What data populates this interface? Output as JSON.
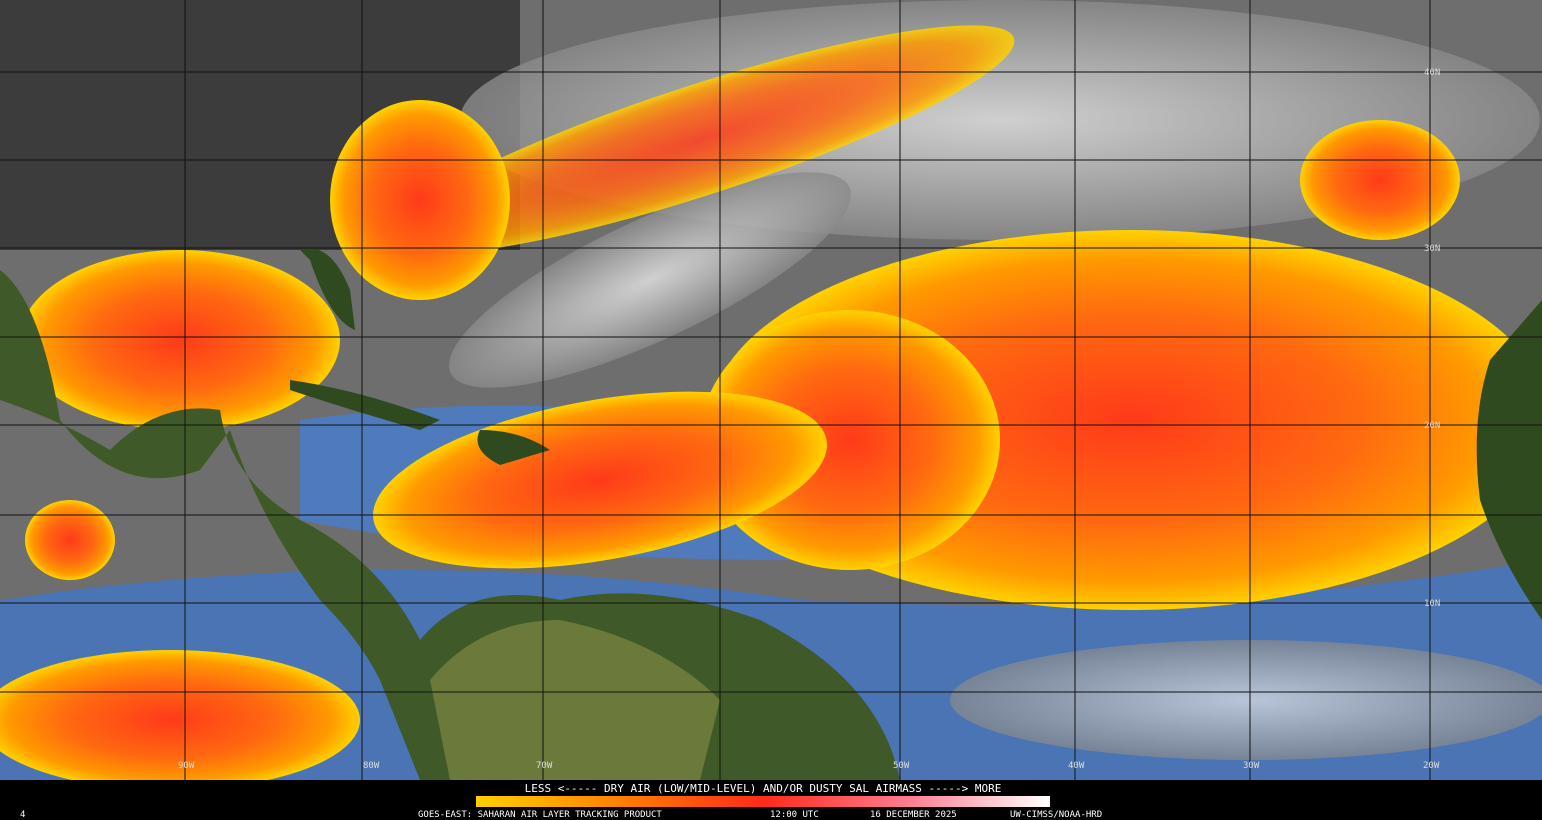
{
  "map": {
    "lat_labels": [
      "40N",
      "30N",
      "20N",
      "10N"
    ],
    "lon_labels": [
      "90W",
      "80W",
      "70W",
      "50W",
      "40W",
      "30W",
      "20W"
    ],
    "colorbar": {
      "caption": "LESS <----- DRY AIR (LOW/MID-LEVEL) AND/OR DUSTY SAL AIRMASS -----> MORE"
    },
    "footer": {
      "product": "GOES-EAST: SAHARAN AIR LAYER TRACKING PRODUCT",
      "time": "12:00 UTC",
      "date": "16 DECEMBER 2025",
      "credit": "UW-CIMSS/NOAA-HRD",
      "frame": "4"
    }
  }
}
